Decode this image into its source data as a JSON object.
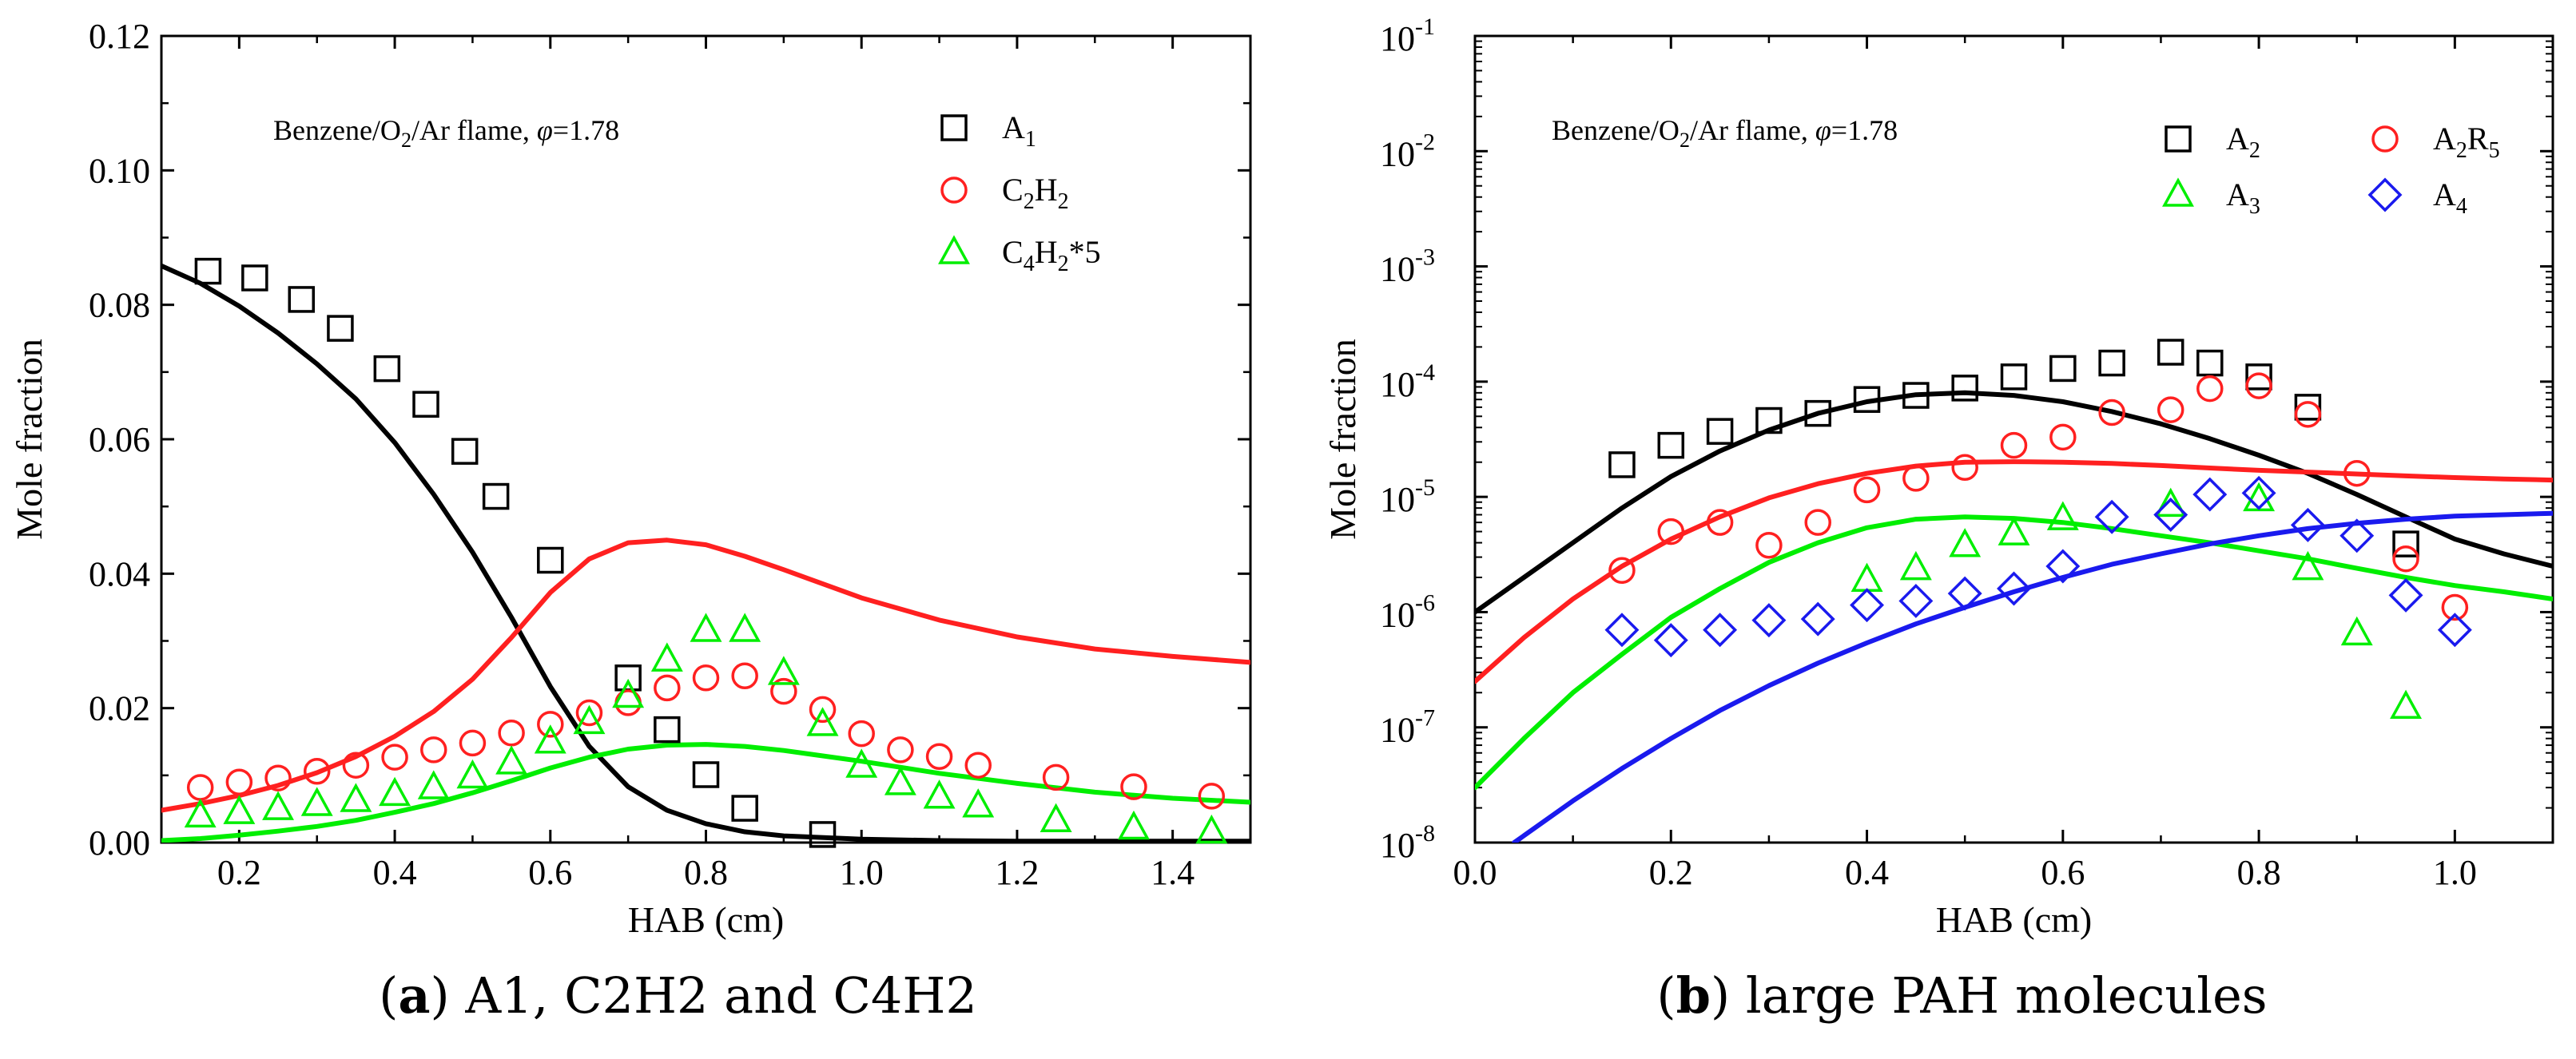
{
  "chart_data": [
    {
      "id": "a",
      "type": "scatter",
      "yscale": "linear",
      "xlabel": "HAB (cm)",
      "ylabel": "Mole fraction",
      "xlim": [
        0.1,
        1.5
      ],
      "ylim": [
        0,
        0.12
      ],
      "xticks": [
        0.2,
        0.4,
        0.6,
        0.8,
        1.0,
        1.2,
        1.4
      ],
      "xtick_labels": [
        "0.2",
        "0.4",
        "0.6",
        "0.8",
        "1.0",
        "1.2",
        "1.4"
      ],
      "yticks": [
        0,
        0.02,
        0.04,
        0.06,
        0.08,
        0.1,
        0.12
      ],
      "ytick_labels": [
        "0.00",
        "0.02",
        "0.04",
        "0.06",
        "0.08",
        "0.10",
        "0.12"
      ],
      "annotation": {
        "prefix": "Benzene/O",
        "sub": "2",
        "middle": "/Ar flame, ",
        "phi": "φ",
        "suffix": "=1.78"
      },
      "caption": {
        "open": "(",
        "letter": "a",
        "close": ")",
        "text": " A1, C2H2 and C4H2"
      },
      "series": [
        {
          "name": "A1",
          "legend": {
            "main": "A",
            "sub": "1",
            "tail": ""
          },
          "color": "#000000",
          "marker": "square",
          "x": [
            0.16,
            0.22,
            0.28,
            0.33,
            0.39,
            0.44,
            0.49,
            0.53,
            0.6,
            0.7,
            0.75,
            0.8,
            0.85,
            0.95
          ],
          "y": [
            0.085,
            0.084,
            0.0808,
            0.0765,
            0.0705,
            0.0652,
            0.0582,
            0.0515,
            0.042,
            0.0245,
            0.0168,
            0.0101,
            0.0051,
            0.0012
          ]
        },
        {
          "name": "C2H2",
          "legend": {
            "main": "C",
            "sub": "2",
            "main2": "H",
            "sub2": "2",
            "tail": ""
          },
          "color": "#ff2020",
          "marker": "circle",
          "x": [
            0.15,
            0.2,
            0.25,
            0.3,
            0.35,
            0.4,
            0.45,
            0.5,
            0.55,
            0.6,
            0.65,
            0.7,
            0.75,
            0.8,
            0.85,
            0.9,
            0.95,
            1.0,
            1.05,
            1.1,
            1.15,
            1.25,
            1.35,
            1.45
          ],
          "y": [
            0.0082,
            0.009,
            0.0096,
            0.0106,
            0.0115,
            0.0127,
            0.0138,
            0.0148,
            0.0163,
            0.0176,
            0.0193,
            0.0208,
            0.023,
            0.0245,
            0.0248,
            0.0225,
            0.0198,
            0.0162,
            0.0138,
            0.0128,
            0.0115,
            0.0097,
            0.0083,
            0.0069
          ]
        },
        {
          "name": "C4H2*5",
          "legend": {
            "main": "C",
            "sub": "4",
            "main2": "H",
            "sub2": "2",
            "tail": "*5"
          },
          "color": "#00ee00",
          "marker": "triangle",
          "x": [
            0.15,
            0.2,
            0.25,
            0.3,
            0.35,
            0.4,
            0.45,
            0.5,
            0.55,
            0.6,
            0.65,
            0.7,
            0.75,
            0.8,
            0.85,
            0.9,
            0.95,
            1.0,
            1.05,
            1.1,
            1.15,
            1.25,
            1.35,
            1.45
          ],
          "y": [
            0.004,
            0.0045,
            0.0051,
            0.0057,
            0.0063,
            0.0072,
            0.0082,
            0.0098,
            0.0119,
            0.015,
            0.0179,
            0.0218,
            0.0272,
            0.0316,
            0.0316,
            0.0252,
            0.0176,
            0.0114,
            0.0088,
            0.0068,
            0.0055,
            0.0033,
            0.0022,
            0.0016
          ]
        }
      ],
      "model": [
        {
          "name": "A1 model",
          "color": "#000000",
          "x": [
            0.1,
            0.15,
            0.2,
            0.25,
            0.3,
            0.35,
            0.4,
            0.45,
            0.5,
            0.55,
            0.6,
            0.65,
            0.7,
            0.75,
            0.8,
            0.85,
            0.9,
            1.0,
            1.1,
            1.2,
            1.3,
            1.4,
            1.5
          ],
          "y": [
            0.0858,
            0.0832,
            0.0798,
            0.0758,
            0.0712,
            0.066,
            0.0595,
            0.0518,
            0.0432,
            0.0335,
            0.0232,
            0.0143,
            0.0083,
            0.0048,
            0.0028,
            0.0016,
            0.001,
            0.0005,
            0.0003,
            0.0002,
            0.0002,
            0.0002,
            0.0002
          ]
        },
        {
          "name": "C2H2 model",
          "color": "#ff2020",
          "x": [
            0.1,
            0.15,
            0.2,
            0.25,
            0.3,
            0.35,
            0.4,
            0.45,
            0.5,
            0.55,
            0.6,
            0.65,
            0.7,
            0.75,
            0.8,
            0.85,
            0.9,
            1.0,
            1.1,
            1.2,
            1.3,
            1.4,
            1.5
          ],
          "y": [
            0.0048,
            0.0058,
            0.007,
            0.0085,
            0.0104,
            0.0128,
            0.0158,
            0.0195,
            0.0243,
            0.0305,
            0.0372,
            0.0422,
            0.0446,
            0.045,
            0.0443,
            0.0426,
            0.0406,
            0.0364,
            0.0331,
            0.0306,
            0.0288,
            0.0277,
            0.0268
          ]
        },
        {
          "name": "C4H2*5 model",
          "color": "#00ee00",
          "x": [
            0.1,
            0.15,
            0.2,
            0.25,
            0.3,
            0.35,
            0.4,
            0.45,
            0.5,
            0.55,
            0.6,
            0.65,
            0.7,
            0.75,
            0.8,
            0.85,
            0.9,
            1.0,
            1.1,
            1.2,
            1.3,
            1.4,
            1.5
          ],
          "y": [
            0.0003,
            0.0006,
            0.0011,
            0.0017,
            0.0024,
            0.0033,
            0.0045,
            0.0058,
            0.0074,
            0.0092,
            0.0111,
            0.0127,
            0.0139,
            0.0145,
            0.0146,
            0.0143,
            0.0137,
            0.0121,
            0.0103,
            0.0088,
            0.0075,
            0.0066,
            0.006
          ]
        }
      ]
    },
    {
      "id": "b",
      "type": "scatter",
      "yscale": "log",
      "xlabel": "HAB (cm)",
      "ylabel": "Mole fraction",
      "xlim": [
        0,
        1.1
      ],
      "ylim_exp": [
        -8,
        -1
      ],
      "xticks": [
        0,
        0.2,
        0.4,
        0.6,
        0.8,
        1.0
      ],
      "xtick_labels": [
        "0.0",
        "0.2",
        "0.4",
        "0.6",
        "0.8",
        "1.0"
      ],
      "ytick_exps": [
        -8,
        -7,
        -6,
        -5,
        -4,
        -3,
        -2,
        -1
      ],
      "ytick_base": "10",
      "ytick_sups": [
        "-8",
        "-7",
        "-6",
        "-5",
        "-4",
        "-3",
        "-2",
        "-1"
      ],
      "annotation": {
        "prefix": "Benzene/O",
        "sub": "2",
        "middle": "/Ar flame, ",
        "phi": "φ",
        "suffix": "=1.78"
      },
      "caption": {
        "open": "(",
        "letter": "b",
        "close": ")",
        "text": " large PAH molecules"
      },
      "series": [
        {
          "name": "A2",
          "legend": {
            "main": "A",
            "sub": "2",
            "tail": ""
          },
          "color": "#000000",
          "marker": "square",
          "x": [
            0.15,
            0.2,
            0.25,
            0.3,
            0.35,
            0.4,
            0.45,
            0.5,
            0.55,
            0.6,
            0.65,
            0.71,
            0.75,
            0.8,
            0.85,
            0.95
          ],
          "y": [
            1.9e-05,
            2.8e-05,
            3.7e-05,
            4.6e-05,
            5.3e-05,
            7e-05,
            7.6e-05,
            8.8e-05,
            0.00011,
            0.00013,
            0.000145,
            0.00018,
            0.000145,
            0.00011,
            6e-05,
            3.9e-06
          ]
        },
        {
          "name": "A2R5",
          "legend": {
            "main": "A",
            "sub": "2",
            "main2": "R",
            "sub2": "5",
            "tail": ""
          },
          "color": "#ff2020",
          "marker": "circle",
          "x": [
            0.15,
            0.2,
            0.25,
            0.3,
            0.35,
            0.4,
            0.45,
            0.5,
            0.55,
            0.6,
            0.65,
            0.71,
            0.75,
            0.8,
            0.85,
            0.9,
            0.95,
            1.0
          ],
          "y": [
            2.3e-06,
            5e-06,
            6e-06,
            3.8e-06,
            6e-06,
            1.15e-05,
            1.45e-05,
            1.8e-05,
            2.8e-05,
            3.3e-05,
            5.4e-05,
            5.7e-05,
            8.7e-05,
            9.2e-05,
            5.2e-05,
            1.6e-05,
            2.9e-06,
            1.1e-06
          ]
        },
        {
          "name": "A3",
          "legend": {
            "main": "A",
            "sub": "3",
            "tail": ""
          },
          "color": "#00ee00",
          "marker": "triangle",
          "x": [
            0.4,
            0.45,
            0.5,
            0.55,
            0.6,
            0.71,
            0.8,
            0.85,
            0.9,
            0.95
          ],
          "y": [
            1.9e-06,
            2.4e-06,
            3.8e-06,
            4.8e-06,
            6.5e-06,
            8.5e-06,
            9.5e-06,
            2.4e-06,
            6.5e-07,
            1.5e-07
          ]
        },
        {
          "name": "A4",
          "legend": {
            "main": "A",
            "sub": "4",
            "tail": ""
          },
          "color": "#1a1aee",
          "marker": "diamond",
          "x": [
            0.15,
            0.2,
            0.25,
            0.3,
            0.35,
            0.4,
            0.45,
            0.5,
            0.55,
            0.6,
            0.65,
            0.71,
            0.75,
            0.8,
            0.85,
            0.9,
            0.95,
            1.0
          ],
          "y": [
            7e-07,
            5.7e-07,
            7e-07,
            8.5e-07,
            8.7e-07,
            1.15e-06,
            1.25e-06,
            1.45e-06,
            1.6e-06,
            2.5e-06,
            6.7e-06,
            7e-06,
            1.05e-05,
            1.08e-05,
            5.7e-06,
            4.6e-06,
            1.4e-06,
            7e-07
          ]
        }
      ],
      "model": [
        {
          "name": "A2 model",
          "color": "#000000",
          "x": [
            0,
            0.05,
            0.1,
            0.15,
            0.2,
            0.25,
            0.3,
            0.35,
            0.4,
            0.45,
            0.5,
            0.55,
            0.6,
            0.65,
            0.7,
            0.75,
            0.8,
            0.85,
            0.9,
            0.95,
            1.0,
            1.05,
            1.1
          ],
          "y": [
            1e-06,
            2e-06,
            4e-06,
            8e-06,
            1.5e-05,
            2.5e-05,
            3.8e-05,
            5.3e-05,
            6.7e-05,
            7.7e-05,
            8e-05,
            7.6e-05,
            6.7e-05,
            5.5e-05,
            4.3e-05,
            3.2e-05,
            2.3e-05,
            1.6e-05,
            1.05e-05,
            6.7e-06,
            4.3e-06,
            3.2e-06,
            2.5e-06
          ]
        },
        {
          "name": "A2R5 model",
          "color": "#ff2020",
          "x": [
            0,
            0.05,
            0.1,
            0.15,
            0.2,
            0.25,
            0.3,
            0.35,
            0.4,
            0.45,
            0.5,
            0.55,
            0.6,
            0.65,
            0.7,
            0.75,
            0.8,
            0.85,
            0.9,
            0.95,
            1.0,
            1.05,
            1.1
          ],
          "y": [
            2.5e-07,
            6e-07,
            1.3e-06,
            2.5e-06,
            4.3e-06,
            6.7e-06,
            9.8e-06,
            1.3e-05,
            1.6e-05,
            1.85e-05,
            2e-05,
            2.02e-05,
            2e-05,
            1.95e-05,
            1.87e-05,
            1.78e-05,
            1.7e-05,
            1.64e-05,
            1.58e-05,
            1.52e-05,
            1.47e-05,
            1.43e-05,
            1.4e-05
          ]
        },
        {
          "name": "A3 model",
          "color": "#00ee00",
          "x": [
            0,
            0.05,
            0.1,
            0.15,
            0.2,
            0.25,
            0.3,
            0.35,
            0.4,
            0.45,
            0.5,
            0.55,
            0.6,
            0.65,
            0.7,
            0.75,
            0.8,
            0.85,
            0.9,
            0.95,
            1.0,
            1.05,
            1.1
          ],
          "y": [
            3e-08,
            8e-08,
            2e-07,
            4.3e-07,
            9e-07,
            1.6e-06,
            2.7e-06,
            4e-06,
            5.4e-06,
            6.4e-06,
            6.7e-06,
            6.5e-06,
            6e-06,
            5.3e-06,
            4.6e-06,
            4e-06,
            3.4e-06,
            2.9e-06,
            2.4e-06,
            2e-06,
            1.7e-06,
            1.5e-06,
            1.3e-06
          ]
        },
        {
          "name": "A4 model",
          "color": "#1a1aee",
          "x": [
            0.04,
            0.1,
            0.15,
            0.2,
            0.25,
            0.3,
            0.35,
            0.4,
            0.45,
            0.5,
            0.55,
            0.6,
            0.65,
            0.7,
            0.75,
            0.8,
            0.85,
            0.9,
            0.95,
            1.0,
            1.05,
            1.1
          ],
          "y": [
            1e-08,
            2.3e-08,
            4.4e-08,
            8e-08,
            1.4e-07,
            2.3e-07,
            3.6e-07,
            5.4e-07,
            7.9e-07,
            1.1e-06,
            1.5e-06,
            2e-06,
            2.6e-06,
            3.2e-06,
            3.9e-06,
            4.6e-06,
            5.3e-06,
            5.9e-06,
            6.4e-06,
            6.8e-06,
            7e-06,
            7.2e-06
          ]
        }
      ]
    }
  ]
}
